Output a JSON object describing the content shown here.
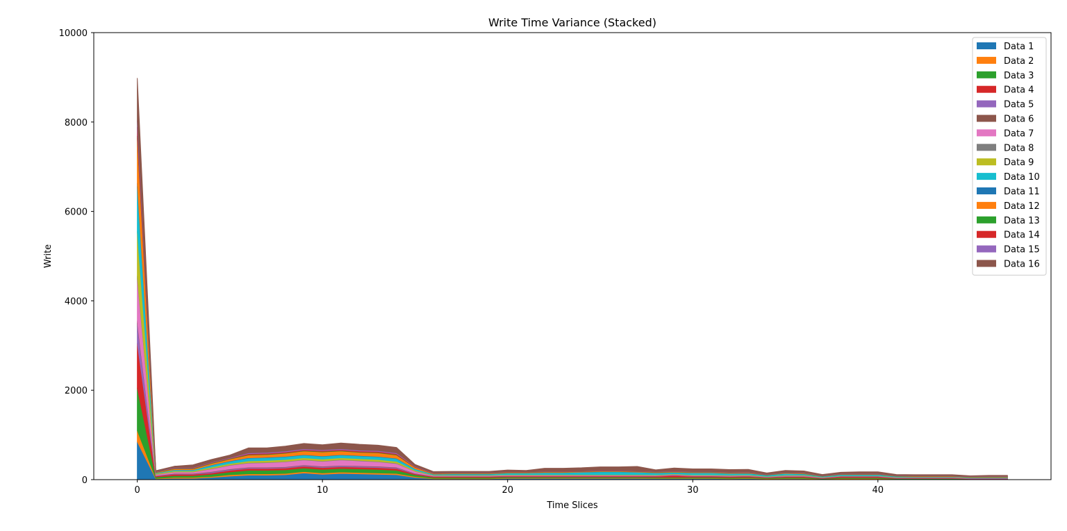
{
  "chart_data": {
    "type": "area",
    "stacked": true,
    "title": "Write Time Variance (Stacked)",
    "xlabel": "Time Slices",
    "ylabel": "Write",
    "xlim": [
      -2.35,
      49.35
    ],
    "ylim": [
      0,
      10000
    ],
    "x_ticks": [
      0,
      10,
      20,
      30,
      40
    ],
    "y_ticks": [
      0,
      2000,
      4000,
      6000,
      8000,
      10000
    ],
    "legend_position": "top-right",
    "grid": false,
    "x": [
      0,
      1,
      2,
      3,
      4,
      5,
      6,
      7,
      8,
      9,
      10,
      11,
      12,
      13,
      14,
      15,
      16,
      17,
      18,
      19,
      20,
      21,
      22,
      23,
      24,
      25,
      26,
      27,
      28,
      29,
      30,
      31,
      32,
      33,
      34,
      35,
      36,
      37,
      38,
      39,
      40,
      41,
      42,
      43,
      44,
      45,
      46,
      47
    ],
    "series": [
      {
        "name": "Data 1",
        "color": "#1f77b4",
        "values": [
          850,
          20,
          30,
          30,
          50,
          80,
          100,
          100,
          110,
          150,
          120,
          140,
          130,
          120,
          110,
          50,
          20,
          20,
          20,
          20,
          30,
          30,
          30,
          30,
          30,
          30,
          30,
          30,
          25,
          25,
          25,
          25,
          20,
          25,
          15,
          20,
          20,
          10,
          15,
          15,
          15,
          10,
          10,
          10,
          10,
          5,
          5,
          5
        ]
      },
      {
        "name": "Data 2",
        "color": "#ff7f0e",
        "values": [
          250,
          10,
          20,
          20,
          20,
          30,
          30,
          30,
          30,
          30,
          30,
          30,
          30,
          30,
          30,
          20,
          10,
          10,
          10,
          10,
          10,
          10,
          10,
          10,
          10,
          10,
          10,
          10,
          10,
          10,
          10,
          10,
          10,
          10,
          10,
          10,
          10,
          5,
          10,
          10,
          10,
          5,
          5,
          5,
          5,
          5,
          5,
          5
        ]
      },
      {
        "name": "Data 3",
        "color": "#2ca02c",
        "values": [
          950,
          30,
          40,
          40,
          50,
          60,
          80,
          80,
          80,
          80,
          80,
          80,
          80,
          80,
          70,
          40,
          20,
          20,
          20,
          20,
          20,
          20,
          20,
          20,
          20,
          20,
          20,
          20,
          20,
          20,
          20,
          20,
          20,
          20,
          15,
          20,
          20,
          10,
          20,
          20,
          20,
          10,
          10,
          10,
          10,
          5,
          5,
          5
        ]
      },
      {
        "name": "Data 4",
        "color": "#d62728",
        "values": [
          1000,
          20,
          30,
          30,
          30,
          40,
          40,
          40,
          40,
          40,
          40,
          40,
          40,
          40,
          40,
          20,
          20,
          20,
          20,
          20,
          20,
          20,
          20,
          20,
          20,
          20,
          20,
          20,
          20,
          40,
          20,
          20,
          20,
          20,
          10,
          20,
          20,
          10,
          20,
          20,
          20,
          10,
          10,
          10,
          10,
          5,
          5,
          5
        ]
      },
      {
        "name": "Data 5",
        "color": "#9467bd",
        "values": [
          450,
          10,
          10,
          10,
          20,
          20,
          20,
          20,
          20,
          20,
          20,
          20,
          20,
          20,
          20,
          10,
          5,
          5,
          5,
          5,
          5,
          5,
          5,
          5,
          5,
          5,
          5,
          5,
          5,
          5,
          5,
          5,
          5,
          5,
          5,
          5,
          5,
          5,
          5,
          5,
          5,
          5,
          5,
          5,
          5,
          5,
          5,
          5
        ]
      },
      {
        "name": "Data 6",
        "color": "#8c564b",
        "values": [
          50,
          5,
          10,
          10,
          10,
          10,
          10,
          10,
          10,
          10,
          10,
          10,
          10,
          10,
          10,
          5,
          5,
          5,
          5,
          5,
          5,
          5,
          5,
          5,
          5,
          5,
          5,
          5,
          5,
          5,
          5,
          5,
          5,
          5,
          5,
          5,
          5,
          5,
          5,
          5,
          5,
          5,
          5,
          5,
          5,
          5,
          5,
          5
        ]
      },
      {
        "name": "Data 7",
        "color": "#e377c2",
        "values": [
          950,
          20,
          30,
          30,
          60,
          80,
          90,
          100,
          110,
          110,
          110,
          120,
          110,
          100,
          80,
          40,
          10,
          10,
          10,
          10,
          10,
          10,
          10,
          10,
          10,
          10,
          10,
          10,
          10,
          10,
          10,
          10,
          10,
          10,
          5,
          10,
          10,
          5,
          5,
          5,
          5,
          5,
          5,
          5,
          5,
          5,
          5,
          5
        ]
      },
      {
        "name": "Data 8",
        "color": "#7f7f7f",
        "values": [
          50,
          5,
          5,
          5,
          10,
          10,
          10,
          10,
          10,
          10,
          10,
          10,
          10,
          10,
          10,
          5,
          5,
          5,
          5,
          5,
          5,
          5,
          5,
          5,
          5,
          5,
          5,
          5,
          5,
          5,
          5,
          5,
          5,
          5,
          5,
          5,
          5,
          5,
          5,
          5,
          5,
          5,
          5,
          5,
          5,
          5,
          5,
          5
        ]
      },
      {
        "name": "Data 9",
        "color": "#bcbd22",
        "values": [
          1000,
          20,
          20,
          20,
          30,
          30,
          40,
          40,
          40,
          40,
          40,
          40,
          40,
          40,
          40,
          20,
          10,
          10,
          10,
          10,
          10,
          10,
          10,
          10,
          10,
          10,
          10,
          10,
          10,
          10,
          10,
          10,
          10,
          10,
          5,
          10,
          10,
          5,
          5,
          5,
          5,
          5,
          5,
          5,
          5,
          5,
          5,
          5
        ]
      },
      {
        "name": "Data 10",
        "color": "#17becf",
        "values": [
          1000,
          10,
          20,
          20,
          40,
          50,
          60,
          60,
          60,
          60,
          60,
          60,
          60,
          60,
          60,
          30,
          15,
          20,
          20,
          20,
          30,
          30,
          40,
          40,
          50,
          60,
          60,
          50,
          40,
          30,
          40,
          40,
          30,
          30,
          20,
          30,
          20,
          10,
          20,
          20,
          20,
          10,
          5,
          5,
          5,
          5,
          5,
          5
        ]
      },
      {
        "name": "Data 11",
        "color": "#1f77b4",
        "values": [
          80,
          5,
          5,
          5,
          10,
          10,
          10,
          10,
          10,
          10,
          10,
          10,
          10,
          10,
          10,
          5,
          5,
          5,
          5,
          5,
          5,
          5,
          5,
          5,
          5,
          5,
          5,
          5,
          5,
          5,
          5,
          5,
          5,
          5,
          5,
          5,
          5,
          5,
          5,
          5,
          5,
          5,
          5,
          5,
          5,
          5,
          5,
          5
        ]
      },
      {
        "name": "Data 12",
        "color": "#ff7f0e",
        "values": [
          1000,
          10,
          20,
          20,
          30,
          40,
          60,
          60,
          70,
          80,
          90,
          80,
          70,
          80,
          70,
          30,
          10,
          10,
          10,
          10,
          10,
          10,
          10,
          10,
          10,
          10,
          10,
          10,
          10,
          10,
          10,
          10,
          10,
          10,
          5,
          10,
          10,
          5,
          5,
          5,
          5,
          5,
          5,
          5,
          5,
          5,
          5,
          5
        ]
      },
      {
        "name": "Data 13",
        "color": "#2ca02c",
        "values": [
          50,
          5,
          10,
          10,
          10,
          10,
          10,
          10,
          10,
          10,
          10,
          10,
          10,
          10,
          10,
          5,
          5,
          5,
          5,
          5,
          5,
          5,
          5,
          5,
          5,
          5,
          5,
          5,
          5,
          5,
          5,
          5,
          5,
          5,
          5,
          5,
          5,
          5,
          5,
          5,
          5,
          5,
          5,
          5,
          5,
          5,
          5,
          5
        ]
      },
      {
        "name": "Data 14",
        "color": "#d62728",
        "values": [
          200,
          5,
          10,
          10,
          10,
          10,
          20,
          20,
          20,
          20,
          20,
          20,
          20,
          20,
          20,
          10,
          5,
          5,
          5,
          5,
          5,
          5,
          5,
          5,
          5,
          5,
          5,
          5,
          5,
          5,
          5,
          5,
          5,
          5,
          5,
          5,
          5,
          5,
          5,
          5,
          5,
          5,
          5,
          5,
          5,
          5,
          5,
          5
        ]
      },
      {
        "name": "Data 15",
        "color": "#9467bd",
        "values": [
          150,
          5,
          10,
          10,
          10,
          10,
          20,
          20,
          20,
          20,
          20,
          20,
          20,
          20,
          20,
          10,
          5,
          5,
          5,
          5,
          5,
          5,
          5,
          5,
          5,
          5,
          5,
          5,
          5,
          5,
          5,
          5,
          5,
          5,
          5,
          5,
          5,
          5,
          5,
          5,
          5,
          5,
          5,
          5,
          5,
          5,
          5,
          5
        ]
      },
      {
        "name": "Data 16",
        "color": "#8c564b",
        "values": [
          950,
          20,
          30,
          60,
          60,
          60,
          110,
          100,
          110,
          120,
          110,
          130,
          130,
          120,
          120,
          40,
          30,
          30,
          30,
          30,
          40,
          30,
          70,
          70,
          70,
          80,
          80,
          100,
          40,
          70,
          60,
          60,
          60,
          60,
          30,
          40,
          40,
          20,
          30,
          40,
          40,
          20,
          20,
          20,
          20,
          10,
          20,
          20
        ]
      }
    ]
  }
}
